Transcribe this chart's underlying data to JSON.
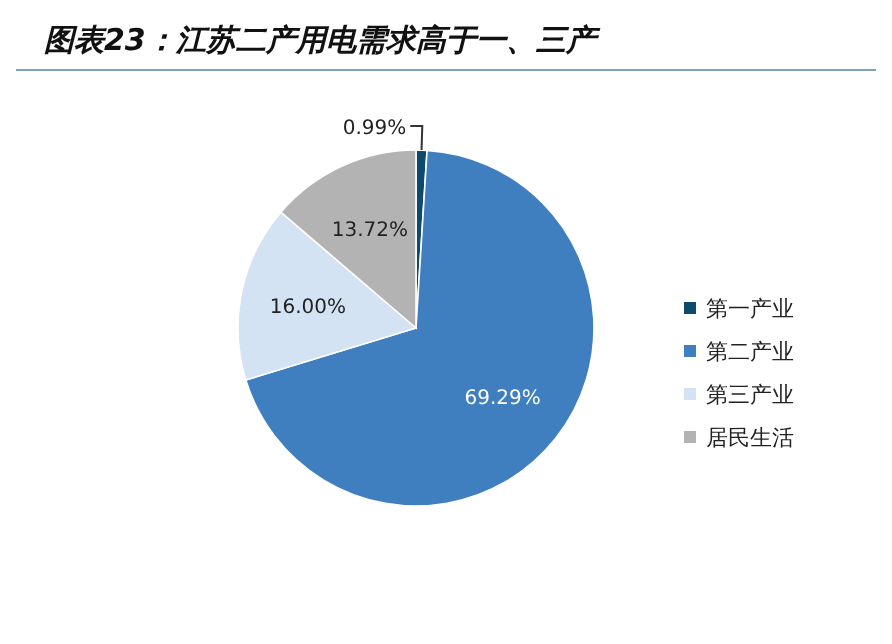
{
  "chart_data": {
    "type": "pie",
    "title": "图表23：江苏二产用电需求高于一、三产",
    "categories": [
      "第一产业",
      "第二产业",
      "第三产业",
      "居民生活"
    ],
    "values": [
      0.99,
      69.29,
      16.0,
      13.72
    ],
    "value_labels": [
      "0.99%",
      "69.29%",
      "16.00%",
      "13.72%"
    ],
    "colors": [
      "#0d4a6e",
      "#3f7fbf",
      "#d3e3f4",
      "#b3b3b3"
    ],
    "legend": "right"
  }
}
